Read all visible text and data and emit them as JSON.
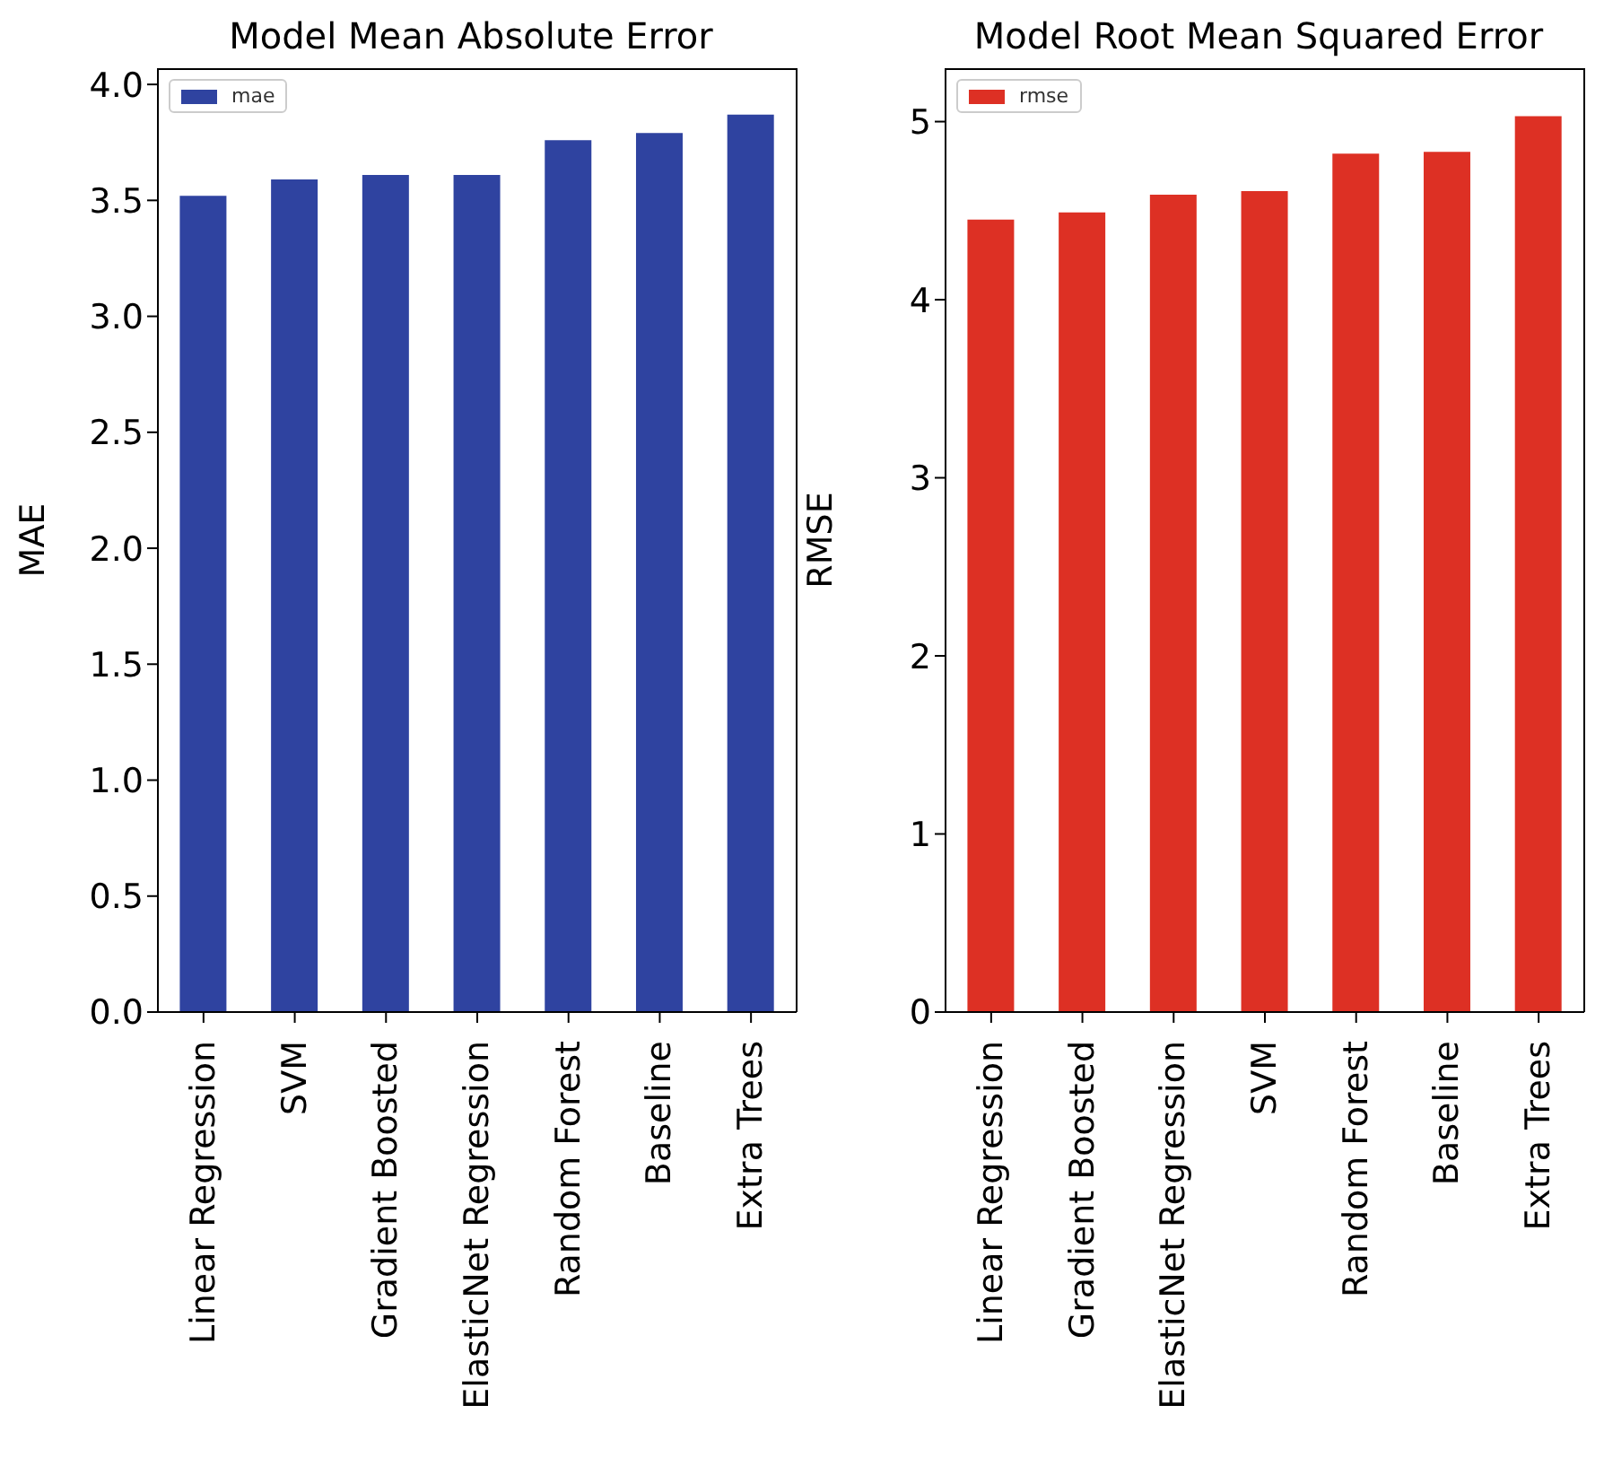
{
  "chart_data": [
    {
      "type": "bar",
      "title": "Model Mean Absolute Error",
      "ylabel": "MAE",
      "categories": [
        "Linear Regression",
        "SVM",
        "Gradient Boosted",
        "ElasticNet Regression",
        "Random Forest",
        "Baseline",
        "Extra Trees"
      ],
      "series": [
        {
          "name": "mae",
          "color": "#2f43a0",
          "values": [
            3.52,
            3.59,
            3.61,
            3.61,
            3.76,
            3.79,
            3.87
          ]
        }
      ],
      "ylim": [
        0,
        4.07
      ],
      "yticks": [
        {
          "value": 0,
          "label": "0.0"
        },
        {
          "value": 0.5,
          "label": "0.5"
        },
        {
          "value": 1,
          "label": "1.0"
        },
        {
          "value": 1.5,
          "label": "1.5"
        },
        {
          "value": 2,
          "label": "2.0"
        },
        {
          "value": 2.5,
          "label": "2.5"
        },
        {
          "value": 3,
          "label": "3.0"
        },
        {
          "value": 3.5,
          "label": "3.5"
        },
        {
          "value": 4,
          "label": "4.0"
        }
      ],
      "legend": "top left"
    },
    {
      "type": "bar",
      "title": "Model Root Mean Squared Error",
      "ylabel": "RMSE",
      "categories": [
        "Linear Regression",
        "Gradient Boosted",
        "ElasticNet Regression",
        "SVM",
        "Random Forest",
        "Baseline",
        "Extra Trees"
      ],
      "series": [
        {
          "name": "rmse",
          "color": "#dd3024",
          "values": [
            4.45,
            4.49,
            4.59,
            4.61,
            4.82,
            4.83,
            5.03
          ]
        }
      ],
      "ylim": [
        0,
        5.3
      ],
      "yticks": [
        0,
        1,
        2,
        3,
        4,
        5
      ],
      "legend": "top left"
    }
  ]
}
